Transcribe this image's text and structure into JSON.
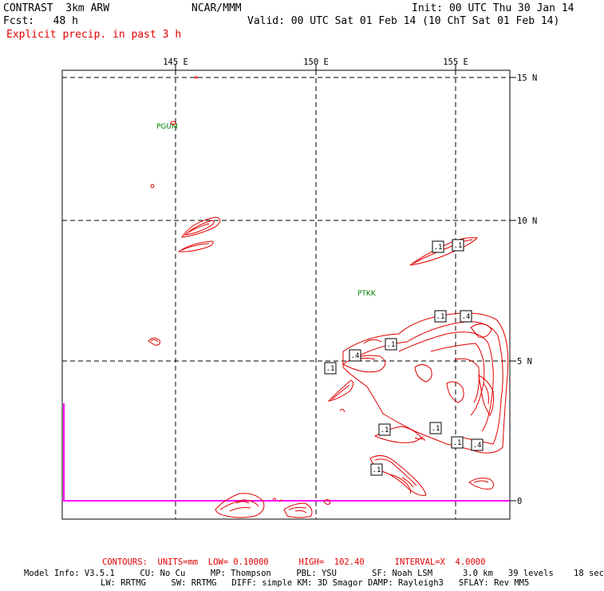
{
  "header": {
    "model_title": "CONTRAST  3km ARW",
    "center": "NCAR/MMM",
    "init": "Init: 00 UTC Thu 30 Jan 14",
    "fcst": "Fcst:   48 h",
    "valid": "Valid: 00 UTC Sat 01 Feb 14 (10 ChT Sat 01 Feb 14)",
    "field": "Explicit precip. in past 3 h"
  },
  "map": {
    "lon_labels": [
      "145 E",
      "150 E",
      "155 E"
    ],
    "lat_labels": [
      "15 N",
      "10 N",
      "5 N",
      "0"
    ],
    "stations": [
      {
        "id": "PGUM"
      },
      {
        "id": "PTKK"
      }
    ],
    "contour_labels": [
      ".1",
      ".1",
      ".1",
      ".4",
      ".4",
      ".1",
      ".1",
      ".1",
      ".1",
      ".1",
      ".1",
      ".4"
    ],
    "colors": {
      "contour": "#e00000",
      "station": "#008000",
      "bar": "#ff00ff",
      "grid": "#000000"
    }
  },
  "footer": {
    "contours_line": "CONTOURS:  UNITS=mm  LOW= 0.10000      HIGH=  102.40      INTERVAL=X  4.0000",
    "model_info_line1": "Model Info: V3.5.1     CU: No Cu     MP: Thompson     PBL: YSU       SF: Noah LSM      3.0 km   39 levels    18 sec",
    "model_info_line2": "LW: RRTMG     SW: RRTMG   DIFF: simple KM: 3D Smagor DAMP: Rayleigh3   SFLAY: Rev MM5"
  }
}
